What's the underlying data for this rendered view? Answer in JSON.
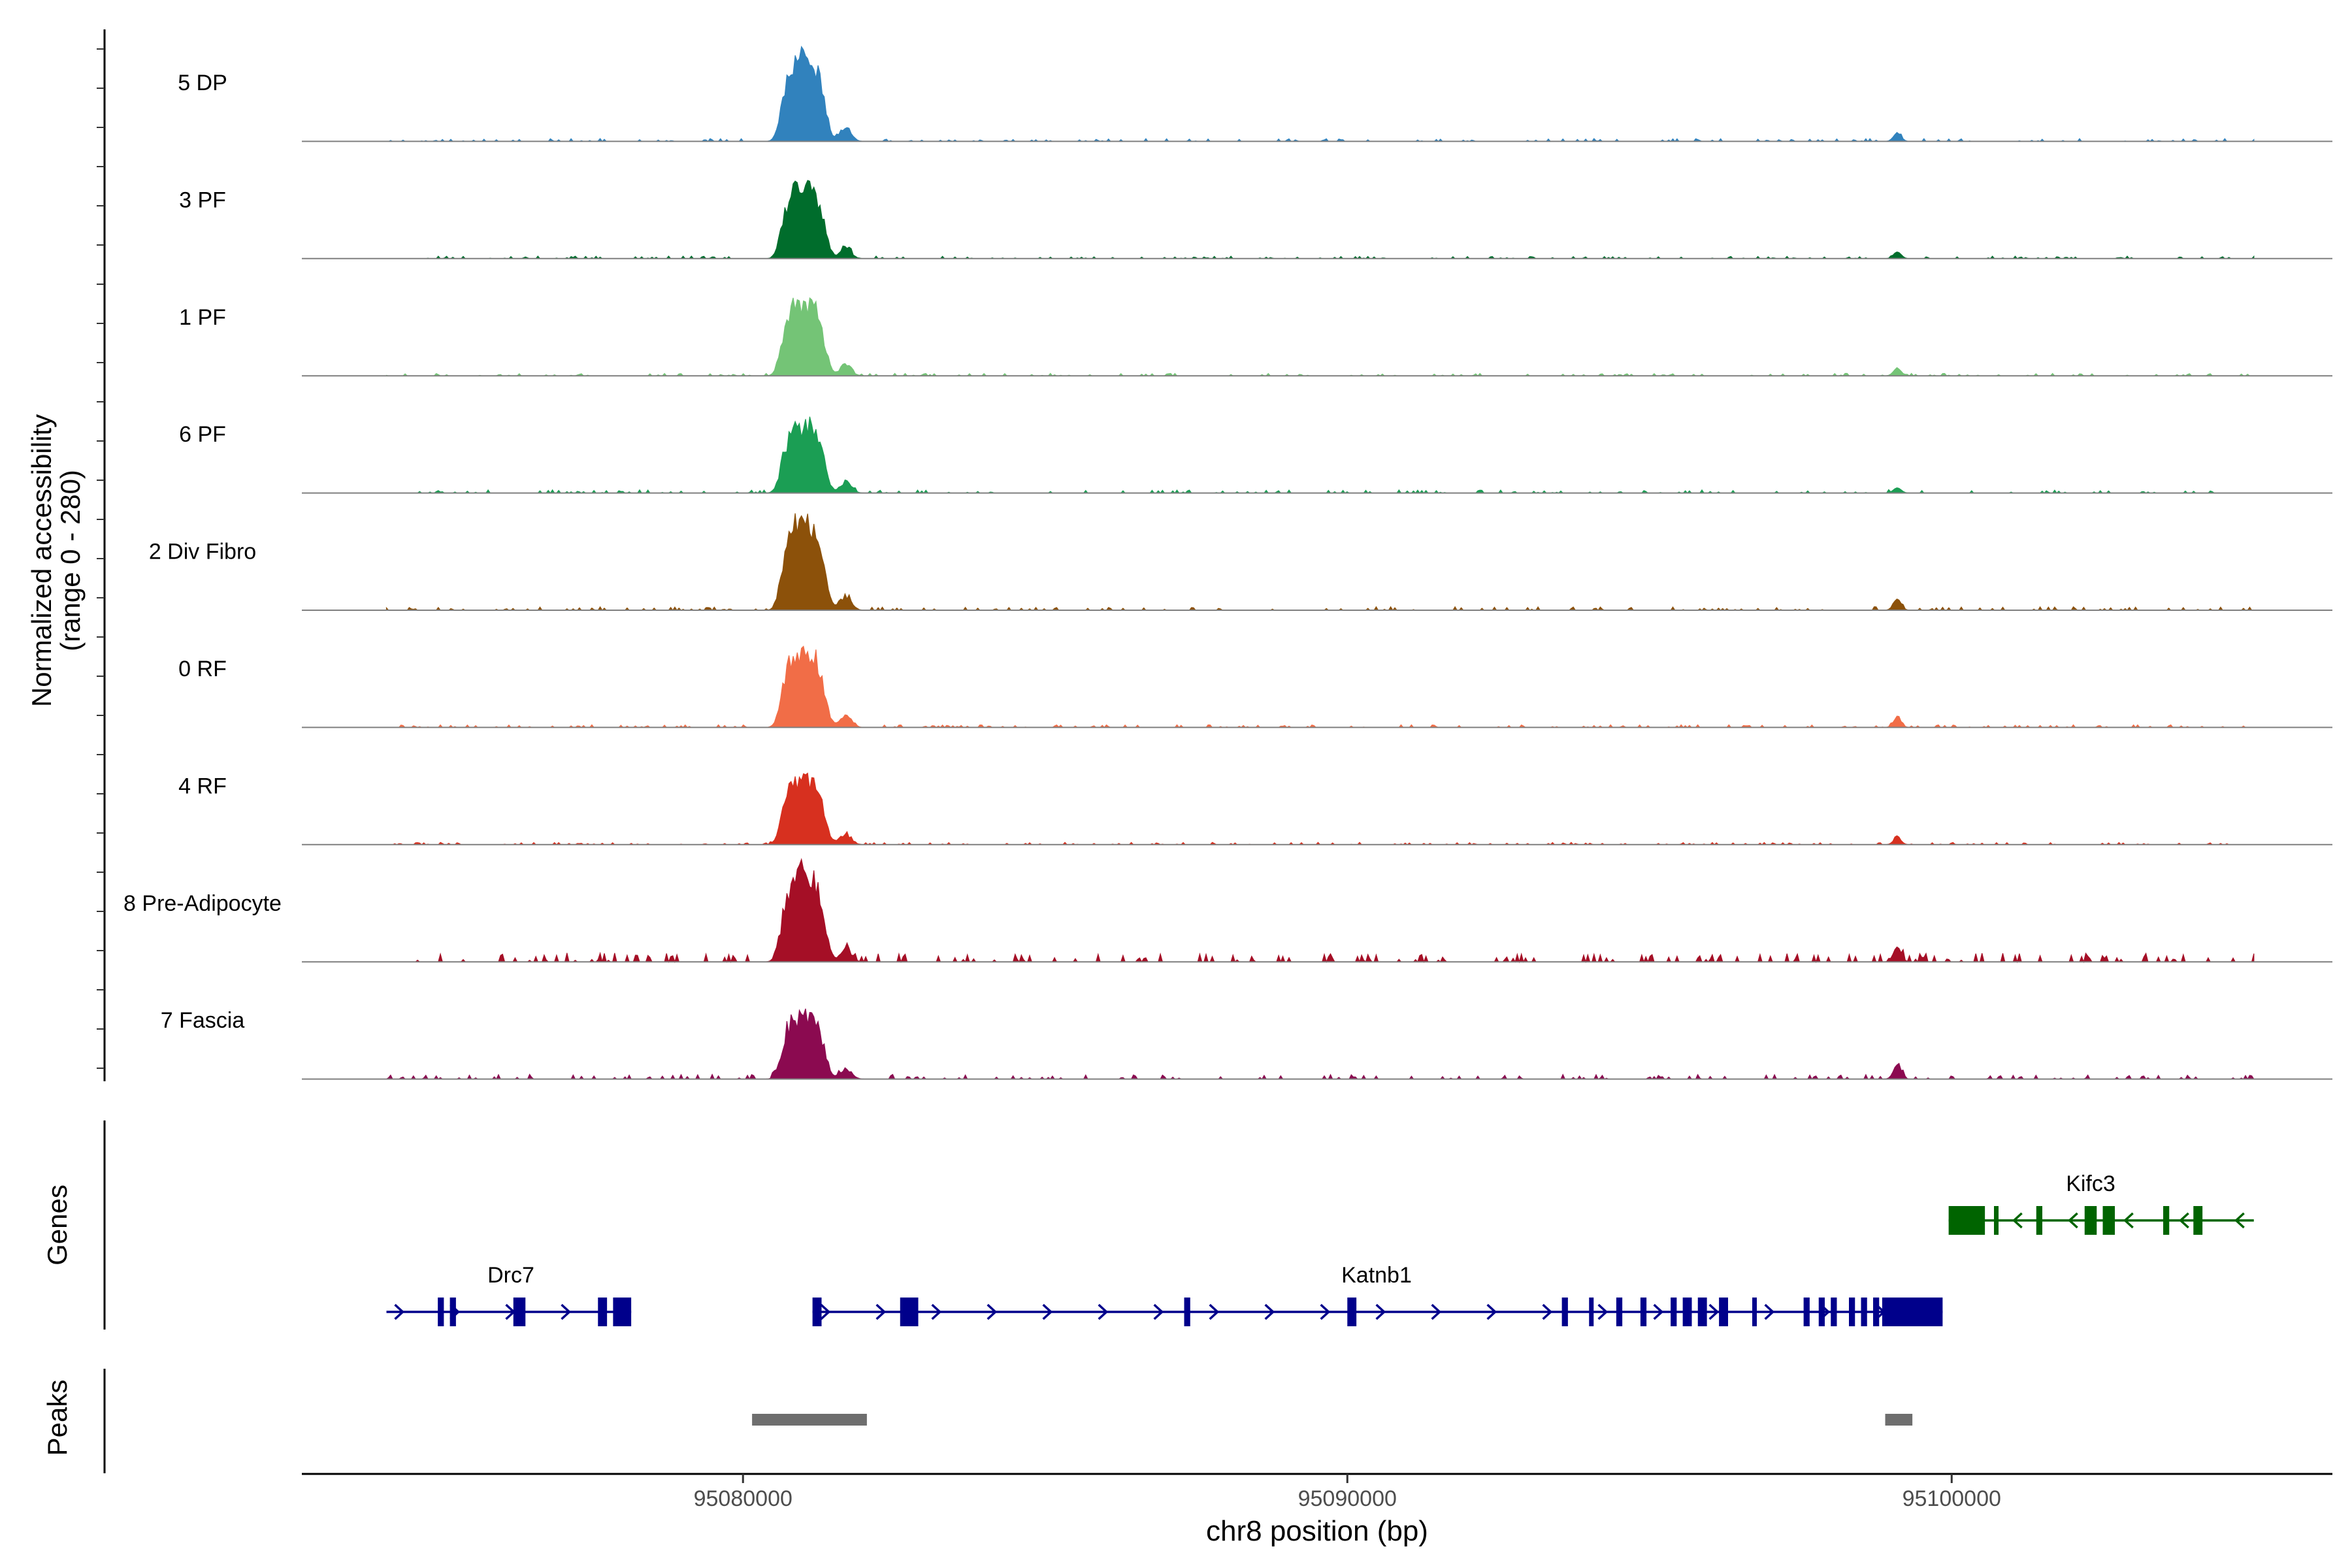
{
  "chart_data": {
    "type": "area",
    "title": "",
    "ylabel": "Normalized accessibility",
    "ylabel_range": "(range 0 - 280)",
    "xlabel": "chr8 position (bp)",
    "ylim": [
      0,
      280
    ],
    "xlim": [
      95072700,
      95106300
    ],
    "x_ticks": [
      95080000,
      95090000,
      95100000
    ],
    "x_tick_labels": [
      "95080000",
      "95090000",
      "95100000"
    ],
    "grid": false,
    "legend": "none",
    "tracks": [
      {
        "name": "5 DP",
        "color": "#3182BD",
        "peak_height": 250,
        "second_peak": 22,
        "noise_level": 0.01,
        "seed": 11
      },
      {
        "name": "3 PF",
        "color": "#006D2C",
        "peak_height": 218,
        "second_peak": 18,
        "noise_level": 0.01,
        "seed": 23
      },
      {
        "name": "1 PF",
        "color": "#74C476",
        "peak_height": 218,
        "second_peak": 20,
        "noise_level": 0.01,
        "seed": 37
      },
      {
        "name": "6 PF",
        "color": "#1B9E54",
        "peak_height": 200,
        "second_peak": 14,
        "noise_level": 0.014,
        "seed": 41
      },
      {
        "name": "2 Div Fibro",
        "color": "#8C510A",
        "peak_height": 262,
        "second_peak": 30,
        "noise_level": 0.012,
        "seed": 53
      },
      {
        "name": "0 RF",
        "color": "#F16D47",
        "peak_height": 232,
        "second_peak": 26,
        "noise_level": 0.01,
        "seed": 67
      },
      {
        "name": "4 RF",
        "color": "#D7301F",
        "peak_height": 200,
        "second_peak": 18,
        "noise_level": 0.01,
        "seed": 79
      },
      {
        "name": "8 Pre-Adipocyte",
        "color": "#A50F26",
        "peak_height": 265,
        "second_peak": 40,
        "noise_level": 0.03,
        "seed": 83
      },
      {
        "name": "7 Fascia",
        "color": "#8B0A50",
        "peak_height": 190,
        "second_peak": 38,
        "noise_level": 0.022,
        "seed": 97
      }
    ],
    "genes_label": "Genes",
    "genes": [
      {
        "name": "Drc7",
        "strand": "+",
        "color": "#00008B",
        "start": 95074100,
        "end": 95078150,
        "exons": [
          [
            95074950,
            95075050
          ],
          [
            95075150,
            95075250
          ],
          [
            95076200,
            95076400
          ],
          [
            95077600,
            95077750
          ],
          [
            95077850,
            95078150
          ]
        ]
      },
      {
        "name": "Katnb1",
        "strand": "+",
        "color": "#00008B",
        "start": 95081150,
        "end": 95099850,
        "exons": [
          [
            95081150,
            95081300
          ],
          [
            95082600,
            95082900
          ],
          [
            95087300,
            95087400
          ],
          [
            95090000,
            95090150
          ],
          [
            95093550,
            95093650
          ],
          [
            95094000,
            95094050
          ],
          [
            95094450,
            95094550
          ],
          [
            95094850,
            95094950
          ],
          [
            95095350,
            95095450
          ],
          [
            95095550,
            95095700
          ],
          [
            95095800,
            95095950
          ],
          [
            95096150,
            95096300
          ],
          [
            95096700,
            95096750
          ],
          [
            95097550,
            95097650
          ],
          [
            95097800,
            95097900
          ],
          [
            95098000,
            95098100
          ],
          [
            95098300,
            95098400
          ],
          [
            95098500,
            95098600
          ],
          [
            95098700,
            95098800
          ],
          [
            95098850,
            95099850
          ]
        ]
      },
      {
        "name": "Kifc3",
        "strand": "-",
        "color": "#006400",
        "start": 95099950,
        "end": 95105000,
        "exons": [
          [
            95099950,
            95100550
          ],
          [
            95100700,
            95100730
          ],
          [
            95101400,
            95101500
          ],
          [
            95102200,
            95102400
          ],
          [
            95102500,
            95102700
          ],
          [
            95103500,
            95103600
          ],
          [
            95104000,
            95104150
          ]
        ]
      }
    ],
    "peaks_label": "Peaks",
    "peaks": [
      [
        95080150,
        95082050
      ],
      [
        95098900,
        95099350
      ]
    ],
    "peak_color": "#6E6E6E"
  }
}
